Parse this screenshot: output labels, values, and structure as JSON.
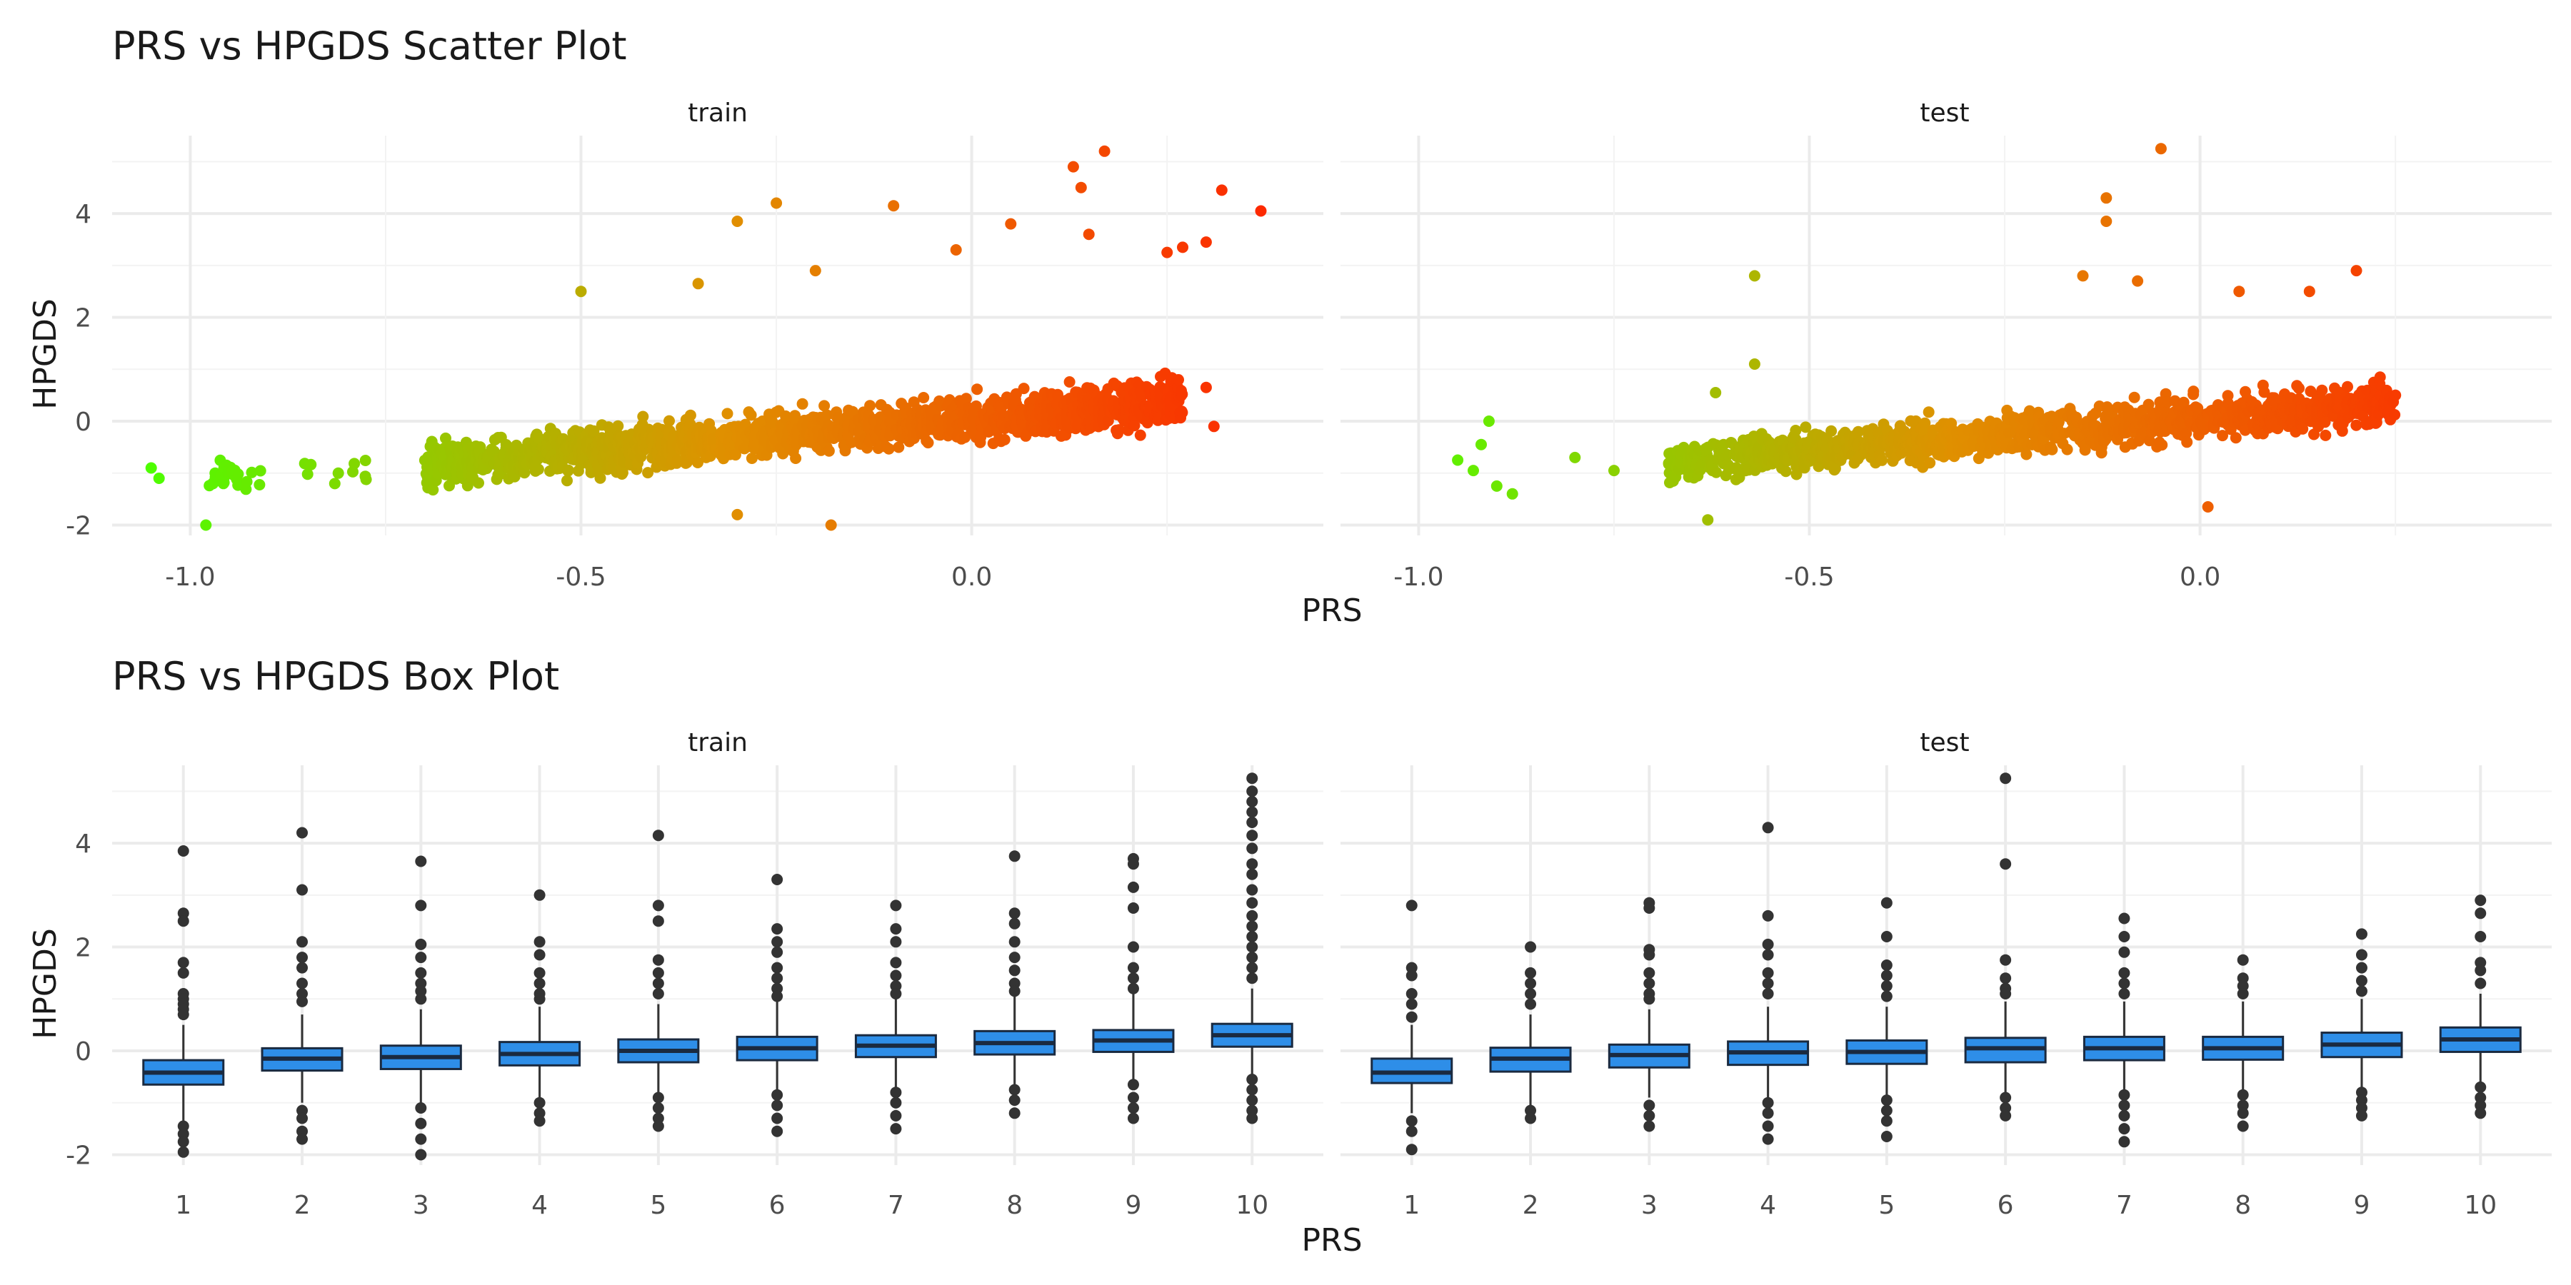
{
  "colors": {
    "low": "#4cff00",
    "mid": "#e09000",
    "high": "#ff2000",
    "box_fill": "#2e8ee8",
    "box_stroke": "#1a2a40",
    "outlier": "#333333",
    "grid": "#ebebeb"
  },
  "chart_data": [
    {
      "type": "scatter",
      "title": "PRS vs HPGDS Scatter Plot",
      "xlabel": "PRS",
      "ylabel": "HPGDS",
      "facets": [
        "train",
        "test"
      ],
      "xlim": [
        -1.1,
        0.45
      ],
      "ylim": [
        -2.2,
        5.5
      ],
      "xticks": [
        -1.0,
        -0.5,
        0.0
      ],
      "xtick_labels": [
        "-1.0",
        "-0.5",
        "0.0"
      ],
      "yticks": [
        -2,
        0,
        2,
        4
      ],
      "ytick_labels": [
        "-2",
        "0",
        "2",
        "4"
      ],
      "color_by": "PRS",
      "grid": true,
      "legend": "none",
      "series": [
        {
          "facet": "train",
          "trend": {
            "slope": 1.3,
            "intercept": 0.05
          },
          "clusters": [
            {
              "x": [
                -0.7,
                0.27
              ],
              "y_spread": 0.32,
              "n": 1600
            },
            {
              "x": [
                -0.98,
                -0.91
              ],
              "y_mean": -1.1,
              "y_spread": 0.25,
              "n": 30
            },
            {
              "x": [
                -0.86,
                -0.75
              ],
              "y_mean": -0.95,
              "y_spread": 0.2,
              "n": 10
            }
          ],
          "points": [
            [
              -1.05,
              -0.9
            ],
            [
              -1.04,
              -1.1
            ],
            [
              -0.98,
              -2.0
            ],
            [
              -0.5,
              2.5
            ],
            [
              -0.35,
              2.65
            ],
            [
              -0.3,
              3.85
            ],
            [
              -0.25,
              4.2
            ],
            [
              -0.1,
              4.15
            ],
            [
              0.05,
              3.8
            ],
            [
              0.13,
              4.9
            ],
            [
              0.17,
              5.2
            ],
            [
              0.14,
              4.5
            ],
            [
              0.27,
              3.35
            ],
            [
              0.3,
              3.45
            ],
            [
              0.32,
              4.45
            ],
            [
              0.37,
              4.05
            ],
            [
              -0.02,
              3.3
            ],
            [
              0.15,
              3.6
            ],
            [
              0.25,
              3.25
            ],
            [
              -0.2,
              2.9
            ],
            [
              -0.18,
              -2.0
            ],
            [
              -0.3,
              -1.8
            ],
            [
              0.3,
              0.65
            ],
            [
              0.31,
              -0.1
            ]
          ]
        },
        {
          "facet": "test",
          "trend": {
            "slope": 1.25,
            "intercept": 0.05
          },
          "clusters": [
            {
              "x": [
                -0.68,
                0.25
              ],
              "y_spread": 0.3,
              "n": 1200
            }
          ],
          "points": [
            [
              -0.95,
              -0.75
            ],
            [
              -0.93,
              -0.95
            ],
            [
              -0.92,
              -0.45
            ],
            [
              -0.91,
              0.0
            ],
            [
              -0.9,
              -1.25
            ],
            [
              -0.88,
              -1.4
            ],
            [
              -0.8,
              -0.7
            ],
            [
              -0.75,
              -0.95
            ],
            [
              -0.62,
              0.55
            ],
            [
              -0.63,
              -1.9
            ],
            [
              -0.57,
              2.8
            ],
            [
              -0.57,
              1.1
            ],
            [
              -0.05,
              5.25
            ],
            [
              -0.12,
              4.3
            ],
            [
              -0.12,
              3.85
            ],
            [
              -0.15,
              2.8
            ],
            [
              -0.08,
              2.7
            ],
            [
              0.2,
              2.9
            ],
            [
              0.05,
              2.5
            ],
            [
              0.14,
              2.5
            ],
            [
              0.01,
              -1.65
            ],
            [
              0.25,
              0.5
            ]
          ]
        }
      ]
    },
    {
      "type": "box",
      "title": "PRS vs HPGDS Box Plot",
      "xlabel": "PRS",
      "ylabel": "HPGDS",
      "facets": [
        "train",
        "test"
      ],
      "categories": [
        "1",
        "2",
        "3",
        "4",
        "5",
        "6",
        "7",
        "8",
        "9",
        "10"
      ],
      "ylim": [
        -2.2,
        5.5
      ],
      "yticks": [
        -2,
        0,
        2,
        4
      ],
      "ytick_labels": [
        "-2",
        "0",
        "2",
        "4"
      ],
      "grid": true,
      "legend": "none",
      "series": [
        {
          "facet": "train",
          "boxes": [
            {
              "q1": -0.65,
              "med": -0.42,
              "q3": -0.18,
              "low": -1.35,
              "high": 0.5,
              "out": [
                3.85,
                2.65,
                2.5,
                1.7,
                1.5,
                1.1,
                1.0,
                0.9,
                0.8,
                0.7,
                -1.45,
                -1.6,
                -1.75,
                -1.95
              ]
            },
            {
              "q1": -0.38,
              "med": -0.15,
              "q3": 0.05,
              "low": -1.0,
              "high": 0.7,
              "out": [
                4.2,
                3.1,
                2.1,
                1.8,
                1.6,
                1.3,
                1.1,
                0.95,
                -1.15,
                -1.3,
                -1.55,
                -1.7
              ]
            },
            {
              "q1": -0.35,
              "med": -0.12,
              "q3": 0.1,
              "low": -1.0,
              "high": 0.8,
              "out": [
                3.65,
                2.8,
                2.05,
                1.8,
                1.5,
                1.3,
                1.15,
                1.0,
                -1.1,
                -1.4,
                -1.7,
                -2.0
              ]
            },
            {
              "q1": -0.28,
              "med": -0.06,
              "q3": 0.17,
              "low": -0.95,
              "high": 0.85,
              "out": [
                3.0,
                2.1,
                1.85,
                1.5,
                1.3,
                1.1,
                1.0,
                -1.0,
                -1.2,
                -1.35
              ]
            },
            {
              "q1": -0.22,
              "med": 0.0,
              "q3": 0.22,
              "low": -0.85,
              "high": 0.9,
              "out": [
                4.15,
                2.8,
                2.5,
                1.75,
                1.5,
                1.3,
                1.1,
                -0.9,
                -1.1,
                -1.3,
                -1.45
              ]
            },
            {
              "q1": -0.18,
              "med": 0.05,
              "q3": 0.27,
              "low": -0.8,
              "high": 0.95,
              "out": [
                3.3,
                2.35,
                2.1,
                1.9,
                1.6,
                1.4,
                1.2,
                1.05,
                -0.85,
                -1.05,
                -1.3,
                -1.55
              ]
            },
            {
              "q1": -0.12,
              "med": 0.1,
              "q3": 0.3,
              "low": -0.75,
              "high": 1.0,
              "out": [
                2.8,
                2.35,
                2.1,
                1.7,
                1.45,
                1.25,
                1.1,
                -0.8,
                -1.0,
                -1.25,
                -1.5
              ]
            },
            {
              "q1": -0.07,
              "med": 0.15,
              "q3": 0.38,
              "low": -0.7,
              "high": 1.05,
              "out": [
                3.75,
                2.65,
                2.45,
                2.1,
                1.8,
                1.55,
                1.3,
                1.15,
                -0.75,
                -0.95,
                -1.2
              ]
            },
            {
              "q1": -0.02,
              "med": 0.2,
              "q3": 0.4,
              "low": -0.6,
              "high": 1.1,
              "out": [
                3.7,
                3.6,
                3.15,
                2.75,
                2.0,
                1.6,
                1.4,
                1.2,
                -0.65,
                -0.9,
                -1.1,
                -1.3
              ]
            },
            {
              "q1": 0.08,
              "med": 0.3,
              "q3": 0.52,
              "low": -0.5,
              "high": 1.2,
              "out": [
                5.25,
                5.0,
                4.8,
                4.6,
                4.4,
                4.15,
                3.9,
                3.6,
                3.4,
                3.1,
                2.85,
                2.6,
                2.4,
                2.2,
                2.0,
                1.8,
                1.6,
                1.4,
                -0.55,
                -0.75,
                -0.95,
                -1.15,
                -1.3
              ]
            }
          ]
        },
        {
          "facet": "test",
          "boxes": [
            {
              "q1": -0.62,
              "med": -0.42,
              "q3": -0.15,
              "low": -1.2,
              "high": 0.5,
              "out": [
                2.8,
                1.6,
                1.45,
                1.1,
                0.9,
                0.65,
                -1.35,
                -1.55,
                -1.9
              ]
            },
            {
              "q1": -0.4,
              "med": -0.15,
              "q3": 0.06,
              "low": -1.05,
              "high": 0.7,
              "out": [
                2.0,
                1.5,
                1.3,
                1.1,
                0.9,
                -1.15,
                -1.3
              ]
            },
            {
              "q1": -0.32,
              "med": -0.08,
              "q3": 0.12,
              "low": -0.9,
              "high": 0.8,
              "out": [
                2.85,
                2.75,
                1.95,
                1.85,
                1.5,
                1.3,
                1.1,
                1.0,
                -1.05,
                -1.25,
                -1.45
              ]
            },
            {
              "q1": -0.27,
              "med": -0.03,
              "q3": 0.18,
              "low": -0.9,
              "high": 0.85,
              "out": [
                4.3,
                2.6,
                2.05,
                1.85,
                1.5,
                1.3,
                1.1,
                -1.0,
                -1.2,
                -1.45,
                -1.7
              ]
            },
            {
              "q1": -0.25,
              "med": -0.02,
              "q3": 0.2,
              "low": -0.85,
              "high": 0.85,
              "out": [
                2.85,
                2.2,
                1.65,
                1.45,
                1.25,
                1.05,
                -0.95,
                -1.15,
                -1.35,
                -1.65
              ]
            },
            {
              "q1": -0.22,
              "med": 0.05,
              "q3": 0.25,
              "low": -0.8,
              "high": 0.95,
              "out": [
                5.25,
                3.6,
                1.75,
                1.4,
                1.2,
                1.1,
                -0.9,
                -1.1,
                -1.25
              ]
            },
            {
              "q1": -0.18,
              "med": 0.05,
              "q3": 0.27,
              "low": -0.75,
              "high": 0.95,
              "out": [
                2.55,
                2.2,
                1.9,
                1.5,
                1.3,
                1.1,
                -0.85,
                -1.05,
                -1.25,
                -1.5,
                -1.75
              ]
            },
            {
              "q1": -0.17,
              "med": 0.05,
              "q3": 0.27,
              "low": -0.8,
              "high": 0.95,
              "out": [
                1.75,
                1.4,
                1.25,
                1.1,
                -0.85,
                -1.05,
                -1.2,
                -1.45
              ]
            },
            {
              "q1": -0.12,
              "med": 0.12,
              "q3": 0.35,
              "low": -0.7,
              "high": 1.0,
              "out": [
                2.25,
                1.85,
                1.6,
                1.35,
                1.15,
                -0.8,
                -0.95,
                -1.1,
                -1.25
              ]
            },
            {
              "q1": -0.02,
              "med": 0.22,
              "q3": 0.45,
              "low": -0.6,
              "high": 1.1,
              "out": [
                2.9,
                2.65,
                2.2,
                1.7,
                1.55,
                1.3,
                -0.7,
                -0.9,
                -1.05,
                -1.2
              ]
            }
          ]
        }
      ]
    }
  ]
}
